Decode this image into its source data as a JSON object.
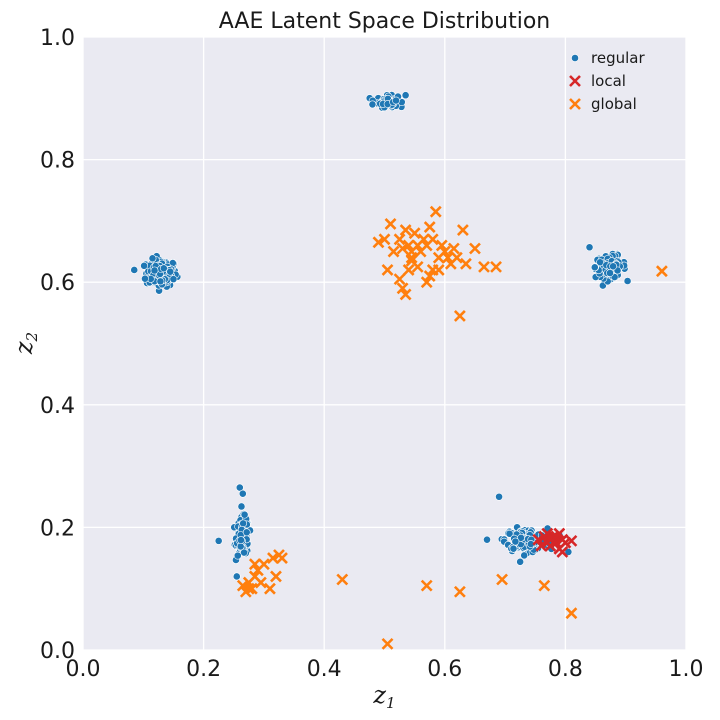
{
  "chart_data": {
    "type": "scatter",
    "title": "AAE Latent Space Distribution",
    "xlabel": "z",
    "xlabel_sub": "1",
    "ylabel": "z",
    "ylabel_sub": "2",
    "xlim": [
      0.0,
      1.0
    ],
    "ylim": [
      0.0,
      1.0
    ],
    "xticks": [
      "0.0",
      "0.2",
      "0.4",
      "0.6",
      "0.8",
      "1.0"
    ],
    "yticks": [
      "0.0",
      "0.2",
      "0.4",
      "0.6",
      "0.8",
      "1.0"
    ],
    "grid": true,
    "legend_position": "top-right",
    "series": [
      {
        "name": "regular",
        "marker": "circle",
        "color": "#1f77b4",
        "clusters": [
          {
            "center": [
              0.13,
              0.615
            ],
            "spread": [
              0.025,
              0.022
            ],
            "count": 160
          },
          {
            "center": [
              0.505,
              0.895
            ],
            "spread": [
              0.017,
              0.009
            ],
            "count": 90
          },
          {
            "center": [
              0.875,
              0.625
            ],
            "spread": [
              0.025,
              0.018
            ],
            "count": 110
          },
          {
            "center": [
              0.265,
              0.185
            ],
            "spread": [
              0.01,
              0.03
            ],
            "count": 140
          },
          {
            "center": [
              0.735,
              0.18
            ],
            "spread": [
              0.035,
              0.018
            ],
            "count": 170
          }
        ],
        "points": [
          [
            0.26,
            0.265
          ],
          [
            0.265,
            0.255
          ],
          [
            0.225,
            0.178
          ],
          [
            0.255,
            0.12
          ],
          [
            0.69,
            0.25
          ],
          [
            0.67,
            0.18
          ],
          [
            0.805,
            0.16
          ],
          [
            0.085,
            0.62
          ],
          [
            0.15,
            0.605
          ],
          [
            0.84,
            0.657
          ],
          [
            0.48,
            0.89
          ],
          [
            0.535,
            0.905
          ]
        ]
      },
      {
        "name": "local",
        "marker": "x",
        "color": "#d62728",
        "points": [
          [
            0.755,
            0.18
          ],
          [
            0.76,
            0.17
          ],
          [
            0.765,
            0.185
          ],
          [
            0.77,
            0.175
          ],
          [
            0.775,
            0.18
          ],
          [
            0.775,
            0.17
          ],
          [
            0.78,
            0.185
          ],
          [
            0.785,
            0.175
          ],
          [
            0.785,
            0.185
          ],
          [
            0.79,
            0.165
          ],
          [
            0.795,
            0.18
          ],
          [
            0.795,
            0.16
          ],
          [
            0.8,
            0.175
          ],
          [
            0.81,
            0.178
          ],
          [
            0.77,
            0.19
          ],
          [
            0.79,
            0.19
          ]
        ]
      },
      {
        "name": "global",
        "marker": "x",
        "color": "#ff7f0e",
        "points": [
          [
            0.5,
            0.67
          ],
          [
            0.51,
            0.695
          ],
          [
            0.525,
            0.67
          ],
          [
            0.53,
            0.655
          ],
          [
            0.535,
            0.685
          ],
          [
            0.54,
            0.66
          ],
          [
            0.545,
            0.65
          ],
          [
            0.55,
            0.68
          ],
          [
            0.555,
            0.66
          ],
          [
            0.56,
            0.65
          ],
          [
            0.565,
            0.67
          ],
          [
            0.57,
            0.66
          ],
          [
            0.575,
            0.69
          ],
          [
            0.58,
            0.67
          ],
          [
            0.585,
            0.715
          ],
          [
            0.59,
            0.64
          ],
          [
            0.595,
            0.66
          ],
          [
            0.6,
            0.65
          ],
          [
            0.605,
            0.64
          ],
          [
            0.61,
            0.63
          ],
          [
            0.615,
            0.655
          ],
          [
            0.62,
            0.64
          ],
          [
            0.63,
            0.685
          ],
          [
            0.635,
            0.63
          ],
          [
            0.65,
            0.655
          ],
          [
            0.665,
            0.625
          ],
          [
            0.685,
            0.625
          ],
          [
            0.505,
            0.62
          ],
          [
            0.525,
            0.605
          ],
          [
            0.53,
            0.59
          ],
          [
            0.535,
            0.58
          ],
          [
            0.54,
            0.62
          ],
          [
            0.545,
            0.635
          ],
          [
            0.555,
            0.625
          ],
          [
            0.57,
            0.6
          ],
          [
            0.575,
            0.61
          ],
          [
            0.58,
            0.62
          ],
          [
            0.59,
            0.62
          ],
          [
            0.625,
            0.545
          ],
          [
            0.49,
            0.665
          ],
          [
            0.515,
            0.65
          ],
          [
            0.545,
            0.64
          ],
          [
            0.265,
            0.105
          ],
          [
            0.27,
            0.095
          ],
          [
            0.275,
            0.11
          ],
          [
            0.28,
            0.1
          ],
          [
            0.285,
            0.12
          ],
          [
            0.29,
            0.13
          ],
          [
            0.295,
            0.11
          ],
          [
            0.3,
            0.14
          ],
          [
            0.31,
            0.1
          ],
          [
            0.315,
            0.15
          ],
          [
            0.32,
            0.12
          ],
          [
            0.325,
            0.155
          ],
          [
            0.33,
            0.15
          ],
          [
            0.275,
            0.1
          ],
          [
            0.285,
            0.14
          ],
          [
            0.43,
            0.115
          ],
          [
            0.505,
            0.01
          ],
          [
            0.57,
            0.105
          ],
          [
            0.625,
            0.095
          ],
          [
            0.695,
            0.115
          ],
          [
            0.765,
            0.105
          ],
          [
            0.81,
            0.06
          ],
          [
            0.96,
            0.618
          ]
        ]
      }
    ]
  }
}
